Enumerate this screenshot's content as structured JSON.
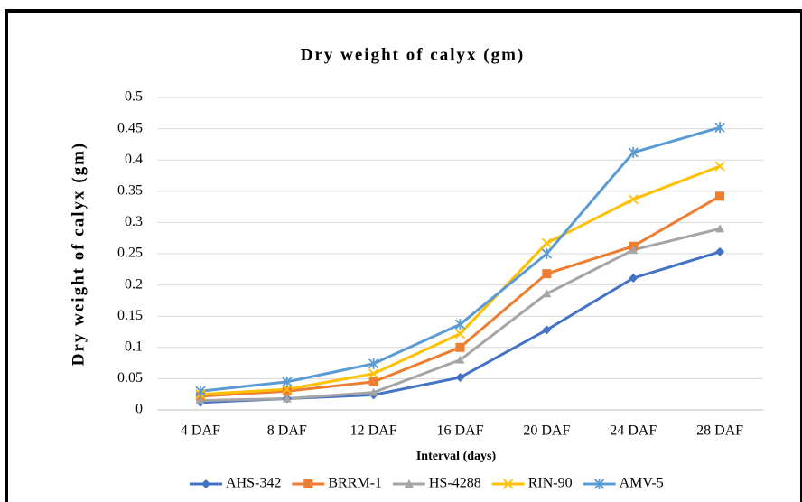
{
  "chart_data": {
    "type": "line",
    "title": "Dry weight of calyx (gm)",
    "x_label": "Interval (days)",
    "y_label": "Dry weight of calyx (gm)",
    "categories": [
      "4 DAF",
      "8 DAF",
      "12 DAF",
      "16 DAF",
      "20 DAF",
      "24 DAF",
      "28 DAF"
    ],
    "series": [
      {
        "name": "AHS-342",
        "color": "#4472c4",
        "marker": "diamond",
        "values": [
          0.012,
          0.018,
          0.024,
          0.052,
          0.128,
          0.211,
          0.253
        ]
      },
      {
        "name": "BRRM-1",
        "color": "#ed7d31",
        "marker": "square",
        "values": [
          0.022,
          0.03,
          0.045,
          0.1,
          0.218,
          0.262,
          0.342
        ]
      },
      {
        "name": "HS-4288",
        "color": "#a5a5a5",
        "marker": "triangle",
        "values": [
          0.015,
          0.018,
          0.028,
          0.08,
          0.186,
          0.256,
          0.29
        ]
      },
      {
        "name": "RIN-90",
        "color": "#ffc000",
        "marker": "x",
        "values": [
          0.025,
          0.033,
          0.058,
          0.122,
          0.267,
          0.337,
          0.39
        ]
      },
      {
        "name": "AMV-5",
        "color": "#5b9bd5",
        "marker": "star",
        "values": [
          0.03,
          0.045,
          0.074,
          0.137,
          0.25,
          0.412,
          0.452
        ]
      }
    ],
    "ylim": [
      0,
      0.5
    ],
    "yticks": [
      0,
      0.05,
      0.1,
      0.15,
      0.2,
      0.25,
      0.3,
      0.35,
      0.4,
      0.45,
      0.5
    ],
    "grid": true,
    "legend": "bottom"
  }
}
